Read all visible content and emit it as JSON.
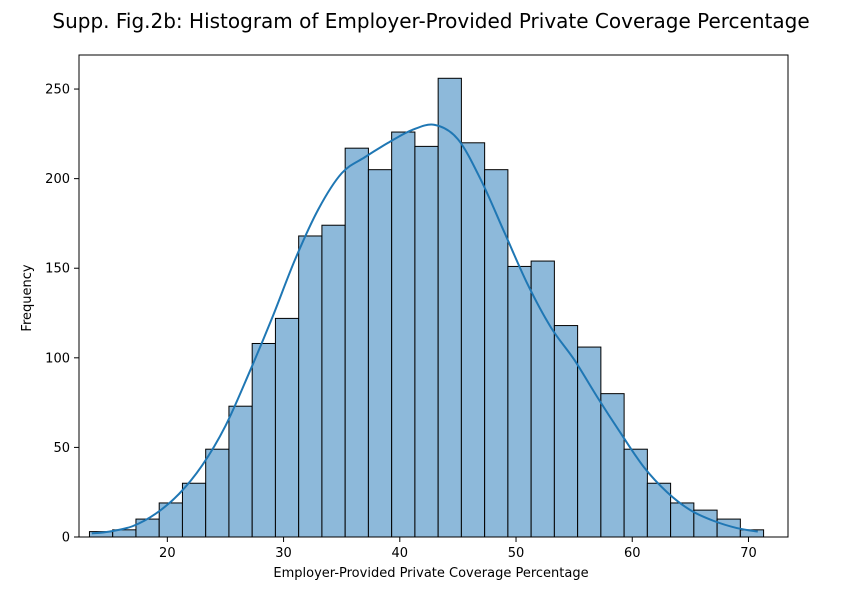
{
  "chart_data": {
    "type": "bar",
    "title": "Supp. Fig.2b: Histogram of Employer-Provided Private Coverage Percentage",
    "xlabel": "Employer-Provided Private Coverage Percentage",
    "ylabel": "Frequency",
    "xlim": [
      12.4,
      73.4
    ],
    "ylim": [
      0,
      269
    ],
    "xticks": [
      20,
      30,
      40,
      50,
      60,
      70
    ],
    "yticks": [
      0,
      50,
      100,
      150,
      200,
      250
    ],
    "grid": false,
    "bin_edges": [
      13.3,
      15.3,
      17.3,
      19.3,
      21.3,
      23.3,
      25.3,
      27.3,
      29.3,
      31.3,
      33.3,
      35.3,
      37.3,
      39.3,
      41.3,
      43.3,
      45.3,
      47.3,
      49.3,
      51.3,
      53.3,
      55.3,
      57.3,
      59.3,
      61.3,
      63.3,
      65.3,
      67.3,
      69.3,
      71.3
    ],
    "values": [
      3,
      4,
      10,
      19,
      30,
      49,
      73,
      108,
      122,
      168,
      174,
      217,
      205,
      226,
      218,
      256,
      220,
      205,
      151,
      154,
      118,
      106,
      80,
      49,
      30,
      19,
      15,
      10,
      4,
      5
    ],
    "kde": {
      "x": [
        13.5,
        15,
        17,
        19,
        21,
        23,
        25,
        27,
        29,
        31,
        33,
        35,
        37,
        39,
        41,
        43,
        45,
        47,
        49,
        51,
        53,
        55,
        57,
        59,
        61,
        63,
        65,
        67,
        69,
        70.8
      ],
      "y": [
        2,
        3,
        6,
        13,
        24,
        40,
        62,
        91,
        122,
        155,
        183,
        203,
        212,
        220,
        227,
        230,
        222,
        199,
        170,
        141,
        117,
        99,
        78,
        58,
        39,
        25,
        15,
        9,
        5,
        3
      ]
    },
    "colors": {
      "bar_fill": "#8db9da",
      "bar_edge": "#000000",
      "kde_line": "#1f77b4"
    }
  }
}
